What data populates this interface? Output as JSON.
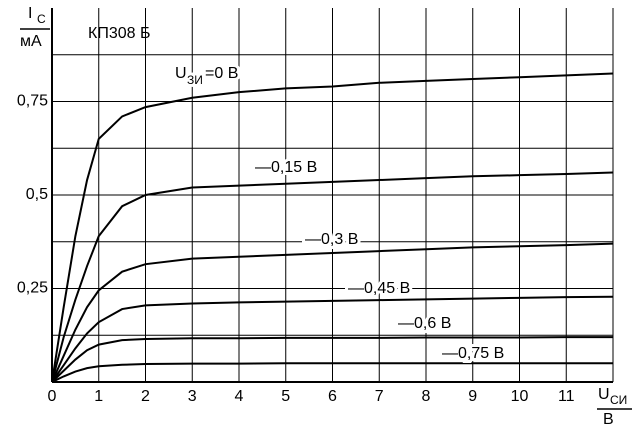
{
  "chart_data": {
    "type": "line",
    "title": "КП308 Б",
    "y_label": {
      "main": "I",
      "sub": "С",
      "unit": "мА"
    },
    "x_label": {
      "main": "U",
      "sub": "СИ",
      "unit": "В"
    },
    "series_prefix": {
      "main": "U",
      "sub": "ЗИ"
    },
    "x": [
      0,
      0.25,
      0.5,
      0.75,
      1,
      1.5,
      2,
      3,
      4,
      5,
      6,
      7,
      8,
      9,
      10,
      11,
      12
    ],
    "series": [
      {
        "name": "=0 В",
        "color": "#000000",
        "values": [
          0,
          0.2,
          0.39,
          0.54,
          0.65,
          0.71,
          0.735,
          0.76,
          0.775,
          0.785,
          0.79,
          0.8,
          0.805,
          0.81,
          0.815,
          0.82,
          0.825
        ]
      },
      {
        "name": "—0,15 В",
        "color": "#000000",
        "values": [
          0,
          0.12,
          0.22,
          0.31,
          0.39,
          0.47,
          0.5,
          0.52,
          0.525,
          0.53,
          0.535,
          0.54,
          0.545,
          0.55,
          0.553,
          0.556,
          0.56
        ]
      },
      {
        "name": "—0,3 В",
        "color": "#000000",
        "values": [
          0,
          0.07,
          0.14,
          0.2,
          0.245,
          0.295,
          0.315,
          0.33,
          0.335,
          0.34,
          0.345,
          0.35,
          0.355,
          0.36,
          0.363,
          0.366,
          0.37
        ]
      },
      {
        "name": "—0,45 В",
        "color": "#000000",
        "values": [
          0,
          0.045,
          0.09,
          0.13,
          0.16,
          0.195,
          0.205,
          0.21,
          0.213,
          0.215,
          0.217,
          0.219,
          0.221,
          0.223,
          0.225,
          0.227,
          0.228
        ]
      },
      {
        "name": "—0,6 В",
        "color": "#000000",
        "values": [
          0,
          0.03,
          0.06,
          0.085,
          0.1,
          0.112,
          0.115,
          0.117,
          0.117,
          0.118,
          0.118,
          0.118,
          0.119,
          0.119,
          0.119,
          0.12,
          0.12
        ]
      },
      {
        "name": "—0,75 В",
        "color": "#000000",
        "values": [
          0,
          0.015,
          0.028,
          0.037,
          0.042,
          0.046,
          0.048,
          0.049,
          0.049,
          0.05,
          0.05,
          0.05,
          0.05,
          0.05,
          0.05,
          0.05,
          0.05
        ]
      }
    ],
    "xlim": [
      0,
      12
    ],
    "ylim": [
      0,
      1
    ],
    "xticks": [
      0,
      1,
      2,
      3,
      4,
      5,
      6,
      7,
      8,
      9,
      10,
      11
    ],
    "yticks": [
      {
        "value": 0.25,
        "label": "0,25"
      },
      {
        "value": 0.5,
        "label": "0,5"
      },
      {
        "value": 0.75,
        "label": "0,75"
      }
    ],
    "xgrid": [
      1,
      2,
      3,
      4,
      5,
      6,
      7,
      8,
      9,
      10,
      11,
      12
    ],
    "ygrid": [
      0.125,
      0.25,
      0.375,
      0.5,
      0.625,
      0.75,
      0.875
    ],
    "grid": true
  }
}
